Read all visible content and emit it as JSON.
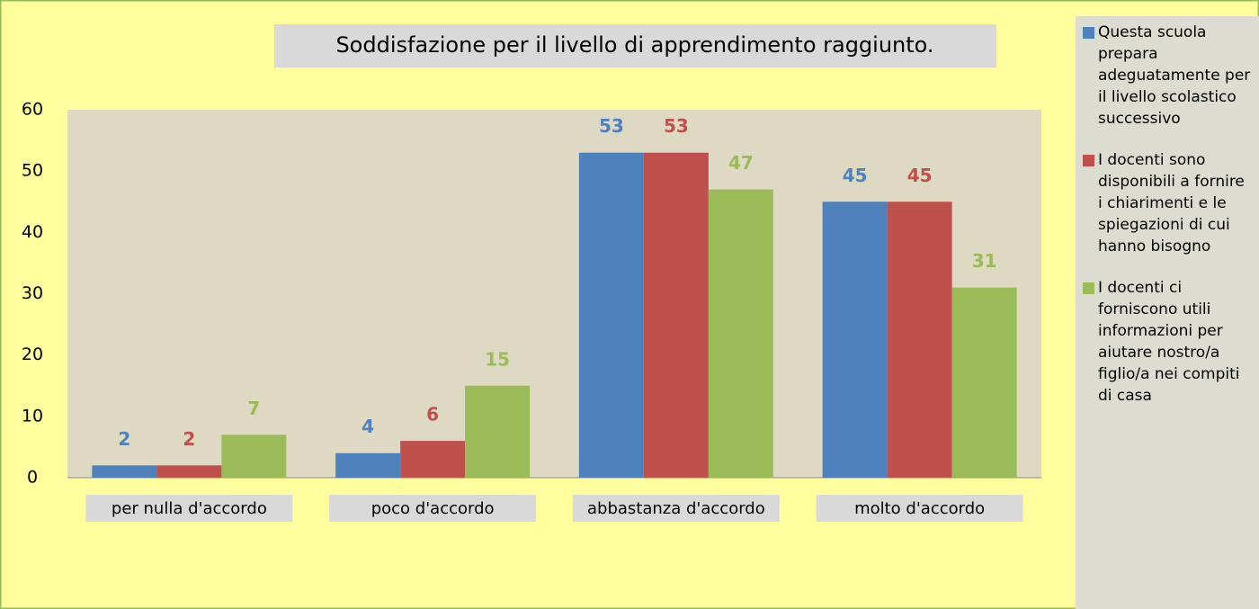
{
  "chart_data": {
    "type": "bar",
    "title": "Soddisfazione per il livello di apprendimento raggiunto.",
    "categories": [
      "per nulla d'accordo",
      "poco d'accordo",
      "abbastanza d'accordo",
      "molto d'accordo"
    ],
    "series": [
      {
        "name": "Questa scuola prepara adeguatamente per il livello scolastico successivo",
        "color": "#4f81bd",
        "values": [
          2,
          4,
          53,
          45
        ]
      },
      {
        "name": "I docenti sono disponibili a fornire i chiarimenti e le spiegazioni di cui hanno bisogno",
        "color": "#c0504d",
        "values": [
          2,
          6,
          53,
          45
        ]
      },
      {
        "name": "I docenti ci forniscono utili informazioni per aiutare nostro/a figlio/a nei compiti di casa",
        "color": "#9bbb59",
        "values": [
          7,
          15,
          47,
          31
        ]
      }
    ],
    "ylim": [
      0,
      60
    ],
    "yticks": [
      0,
      10,
      20,
      30,
      40,
      50,
      60
    ],
    "grid": false,
    "legend": "right"
  }
}
